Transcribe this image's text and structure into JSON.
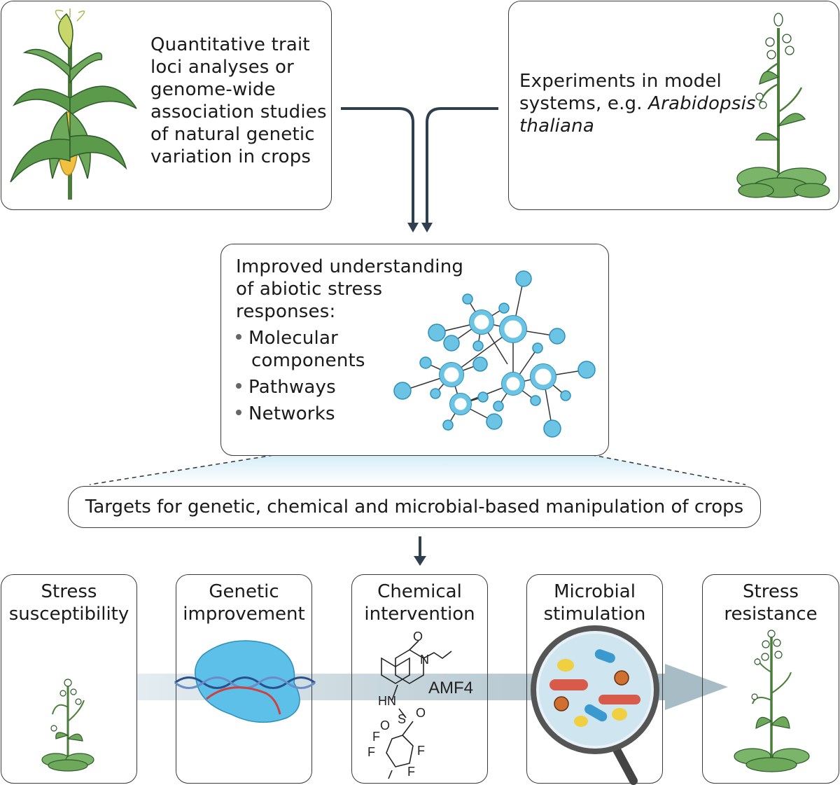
{
  "top_left_box": {
    "lines": [
      "Quantitative trait",
      "loci analyses or",
      "genome-wide",
      "association studies",
      "of natural genetic",
      "variation in crops"
    ]
  },
  "top_right_box": {
    "line1": "Experiments in model",
    "line2_prefix": "systems, e.g. ",
    "line2_italic": "Arabidopsis",
    "line3_italic": "thaliana"
  },
  "middle_box": {
    "title_lines": [
      "Improved understanding",
      "of abiotic stress",
      "responses:"
    ],
    "bullets": [
      {
        "line1": "Molecular",
        "line2": "components"
      },
      {
        "line1": "Pathways"
      },
      {
        "line1": "Networks"
      }
    ]
  },
  "targets_banner": "Targets for genetic, chemical and microbial-based manipulation of crops",
  "bottom_panels": [
    {
      "line1": "Stress",
      "line2": "susceptibility"
    },
    {
      "line1": "Genetic",
      "line2": "improvement"
    },
    {
      "line1": "Chemical",
      "line2": "intervention"
    },
    {
      "line1": "Microbial",
      "line2": "stimulation"
    },
    {
      "line1": "Stress",
      "line2": "resistance"
    }
  ],
  "chemical": {
    "name": "AMF4",
    "atoms": {
      "O_top": "O",
      "N_ring": "N",
      "NH": "HN",
      "S": "S",
      "O_left": "O",
      "O_right": "O",
      "F": "F"
    }
  },
  "colors": {
    "node_fill": "#6cc4e4",
    "node_stroke": "#2e8fb8",
    "arrow": "#2f3f4d",
    "flow_arrow": "#c5d4dc",
    "leaf_green": "#5a9a4a",
    "corn_yellow": "#f0c040",
    "protein_blue": "#5cc0e8"
  }
}
